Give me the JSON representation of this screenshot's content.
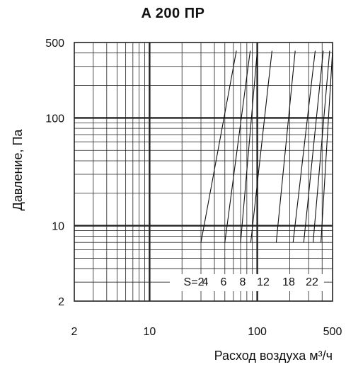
{
  "chart_data": {
    "type": "line",
    "title": "A 200 ПР",
    "xlabel": "Расход воздуха м³/ч",
    "ylabel": "Давление, Па",
    "xscale": "log",
    "yscale": "log",
    "xlim": [
      2,
      500
    ],
    "ylim": [
      2,
      500
    ],
    "x_ticks": [
      "2",
      "10",
      "100",
      "500"
    ],
    "y_ticks": [
      "500",
      "100",
      "10",
      "2"
    ],
    "grid": true,
    "series": [
      {
        "name": "S=2",
        "x": [
          30,
          64
        ],
        "y": [
          7,
          420
        ]
      },
      {
        "name": "4",
        "x": [
          50,
          86
        ],
        "y": [
          7,
          420
        ]
      },
      {
        "name": "6",
        "x": [
          70,
          100
        ],
        "y": [
          7,
          420
        ]
      },
      {
        "name": "8",
        "x": [
          87,
          137
        ],
        "y": [
          7,
          420
        ]
      },
      {
        "name": "12",
        "x": [
          150,
          225
        ],
        "y": [
          7,
          420
        ]
      },
      {
        "name": "18",
        "x": [
          215,
          345
        ],
        "y": [
          7,
          420
        ]
      },
      {
        "name": "22",
        "x": [
          270,
          410
        ],
        "y": [
          7,
          420
        ]
      },
      {
        "name": "",
        "x": [
          330,
          470
        ],
        "y": [
          7,
          420
        ]
      },
      {
        "name": "",
        "x": [
          390,
          500
        ],
        "y": [
          7,
          420
        ]
      }
    ],
    "series_labels": [
      "S=2",
      "4",
      "6",
      "8",
      "12",
      "18",
      "22"
    ]
  }
}
